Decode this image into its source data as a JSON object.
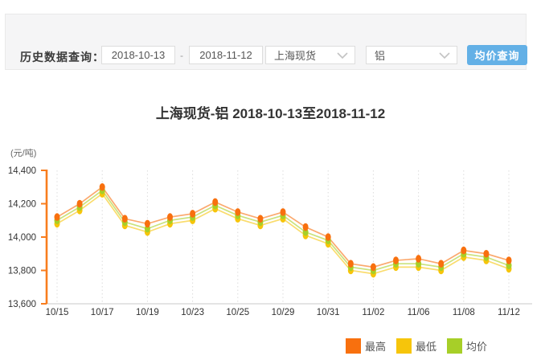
{
  "query_bar": {
    "label": "历史数据查询：",
    "date_from": "2018-10-13",
    "date_to": "2018-11-12",
    "separator": "-",
    "market_selected": "上海现货",
    "product_selected": "铝",
    "button_label": "均价查询",
    "button_color": "#63b0e6",
    "chevron_icon": "chevron-down"
  },
  "chart_data": {
    "type": "line",
    "title": "上海现货-铝 2018-10-13至2018-11-12",
    "ylabel": "(元/吨)",
    "xlabel": "",
    "ylim": [
      13600,
      14400
    ],
    "ytick_interval": 200,
    "ytick_labels": [
      "14,400",
      "14,200",
      "14,000",
      "13,800",
      "13,600"
    ],
    "x": [
      "10/15",
      "10/16",
      "10/17",
      "10/18",
      "10/19",
      "10/22",
      "10/23",
      "10/24",
      "10/25",
      "10/26",
      "10/29",
      "10/30",
      "10/31",
      "11/01",
      "11/02",
      "11/05",
      "11/06",
      "11/07",
      "11/08",
      "11/09",
      "11/12"
    ],
    "xtick_labels": [
      "10/15",
      "10/17",
      "10/19",
      "10/23",
      "10/25",
      "10/29",
      "10/31",
      "11/02",
      "11/06",
      "11/08",
      "11/12"
    ],
    "xtick_indices": [
      0,
      2,
      4,
      6,
      8,
      10,
      12,
      14,
      16,
      18,
      20
    ],
    "grid": "vertical-dotted",
    "legend_position": "bottom-right",
    "axis_colors": {
      "y_axis": "#f87d1e",
      "x_axis": "#c8c8c8",
      "gridline": "#dcdcdc",
      "tick_text": "#333333"
    },
    "series": [
      {
        "name": "最高",
        "color": "#f8700e",
        "values": [
          14120,
          14200,
          14300,
          14110,
          14080,
          14120,
          14140,
          14210,
          14150,
          14110,
          14150,
          14060,
          14000,
          13840,
          13820,
          13860,
          13870,
          13840,
          13920,
          13900,
          13860
        ]
      },
      {
        "name": "最低",
        "color": "#f6c50b",
        "values": [
          14080,
          14160,
          14260,
          14070,
          14030,
          14080,
          14100,
          14170,
          14110,
          14070,
          14110,
          14010,
          13960,
          13800,
          13780,
          13820,
          13820,
          13800,
          13880,
          13860,
          13810
        ]
      },
      {
        "name": "均价",
        "color": "#a7cf28",
        "values": [
          14100,
          14180,
          14280,
          14090,
          14050,
          14100,
          14120,
          14190,
          14130,
          14090,
          14130,
          14030,
          13980,
          13820,
          13800,
          13840,
          13840,
          13820,
          13900,
          13880,
          13830
        ]
      }
    ]
  }
}
